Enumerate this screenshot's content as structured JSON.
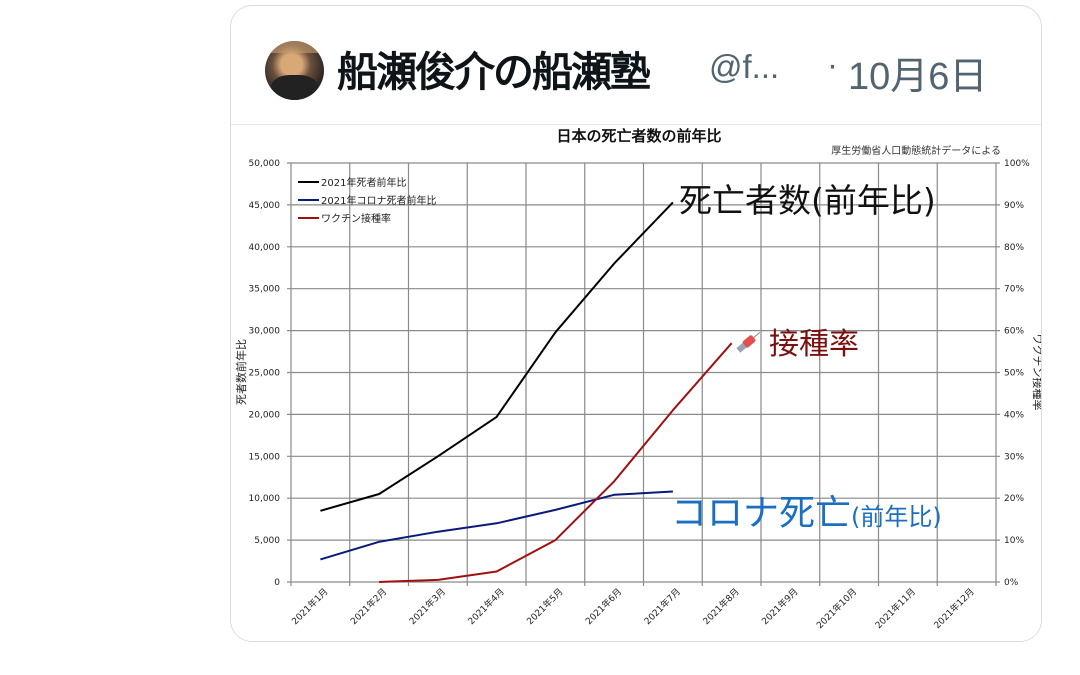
{
  "tweet": {
    "author_name": "船瀬俊介の船瀬塾",
    "handle": "@f...",
    "separator": "·",
    "date": "10月6日",
    "avatar_icon": "avatar-photo"
  },
  "chart_data": {
    "type": "line",
    "title": "日本の死亡者数の前年比",
    "source_note": "厚生労働省人口動態統計データによる",
    "categories": [
      "2021年1月",
      "2021年2月",
      "2021年3月",
      "2021年4月",
      "2021年5月",
      "2021年6月",
      "2021年7月",
      "2021年8月",
      "2021年9月",
      "2021年10月",
      "2021年11月",
      "2021年12月"
    ],
    "ylabel_left": "死者数前年比",
    "ylabel_right": "ワクチン接種率",
    "ylim_left": [
      0,
      50000
    ],
    "ylim_right": [
      0,
      100
    ],
    "left_ticks": [
      "50,000",
      "45,000",
      "40,000",
      "35,000",
      "30,000",
      "25,000",
      "20,000",
      "15,000",
      "10,000",
      "5,000",
      "0"
    ],
    "right_ticks": [
      "100%",
      "90%",
      "80%",
      "70%",
      "60%",
      "50%",
      "40%",
      "30%",
      "20%",
      "10%",
      "0%"
    ],
    "grid": true,
    "legend_position": "top-left inside",
    "series": [
      {
        "name": "2021年死者前年比",
        "axis": "left",
        "color": "#000000",
        "values": [
          8500,
          10500,
          15000,
          19700,
          29800,
          38000,
          45300,
          null,
          null,
          null,
          null,
          null
        ]
      },
      {
        "name": "2021年コロナ死者前年比",
        "axis": "left",
        "color": "#0a1a7a",
        "values": [
          2700,
          4800,
          6000,
          7000,
          8600,
          10400,
          10800,
          null,
          null,
          null,
          null,
          null
        ]
      },
      {
        "name": "ワクチン接種率",
        "axis": "right",
        "color": "#a01010",
        "values": [
          null,
          0,
          0.5,
          2.5,
          10,
          24,
          41,
          57,
          null,
          null,
          null,
          null
        ]
      }
    ],
    "annotations": [
      {
        "text": "死亡者数(前年比)",
        "color": "#111111"
      },
      {
        "text": "接種率",
        "color": "#7a1010",
        "icon": "syringe-icon"
      },
      {
        "text_main": "コロナ死亡",
        "text_paren": "(前年比)",
        "color": "#1a6fc0"
      }
    ]
  }
}
